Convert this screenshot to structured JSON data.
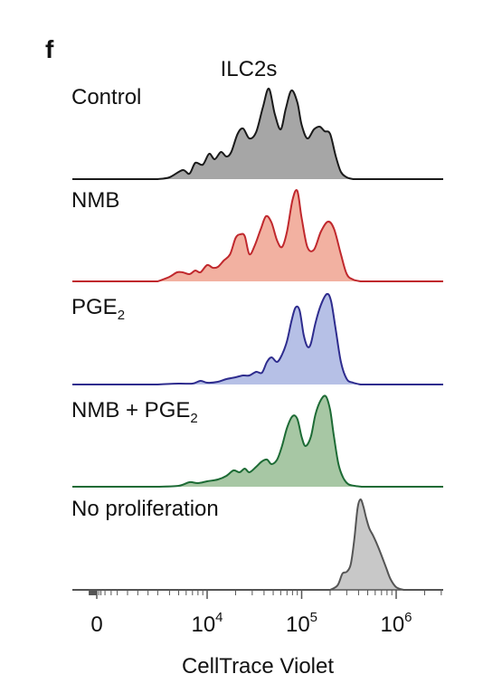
{
  "panel_letter": "f",
  "chart_data": {
    "type": "area",
    "title": "ILC2s",
    "xlabel": "CellTrace Violet",
    "ylabel": "",
    "x_scale": "biexponential",
    "x_ticks": [
      {
        "value": 0,
        "base": "0",
        "exp": ""
      },
      {
        "value": 10000,
        "base": "10",
        "exp": "4"
      },
      {
        "value": 100000,
        "base": "10",
        "exp": "5"
      },
      {
        "value": 1000000,
        "base": "10",
        "exp": "6"
      }
    ],
    "xlim": [
      -300,
      3000000
    ],
    "ylim": [
      0,
      1
    ],
    "series": [
      {
        "name": "Control",
        "name_main": "Control",
        "name_sub": "",
        "stroke": "#1a1a1a",
        "fill": "#a6a6a6",
        "x": [
          3000,
          4000,
          5500,
          6500,
          7500,
          9000,
          10500,
          12000,
          14000,
          16000,
          18000,
          21000,
          24000,
          28000,
          33000,
          39000,
          45000,
          52000,
          60000,
          68000,
          78000,
          90000,
          100000,
          115000,
          135000,
          155000,
          175000,
          200000,
          230000,
          260000,
          300000,
          350000
        ],
        "y": [
          0,
          0.02,
          0.1,
          0.06,
          0.18,
          0.16,
          0.28,
          0.22,
          0.3,
          0.25,
          0.3,
          0.5,
          0.56,
          0.45,
          0.52,
          0.8,
          1.0,
          0.72,
          0.55,
          0.78,
          0.98,
          0.85,
          0.6,
          0.45,
          0.55,
          0.58,
          0.53,
          0.5,
          0.25,
          0.08,
          0.02,
          0
        ]
      },
      {
        "name": "NMB",
        "name_main": "NMB",
        "name_sub": "",
        "stroke": "#c0282d",
        "fill": "#f2b1a1",
        "x": [
          3000,
          4000,
          4800,
          5500,
          6500,
          7500,
          8500,
          10000,
          11500,
          13000,
          15000,
          17500,
          20000,
          22500,
          25000,
          28000,
          32000,
          37000,
          42000,
          48000,
          55000,
          62000,
          70000,
          80000,
          90000,
          100000,
          115000,
          135000,
          160000,
          190000,
          220000,
          260000,
          300000,
          350000,
          420000
        ],
        "y": [
          0,
          0.05,
          0.1,
          0.1,
          0.08,
          0.12,
          0.1,
          0.18,
          0.15,
          0.16,
          0.23,
          0.3,
          0.48,
          0.52,
          0.5,
          0.3,
          0.4,
          0.58,
          0.72,
          0.65,
          0.45,
          0.38,
          0.55,
          0.9,
          1.0,
          0.7,
          0.38,
          0.35,
          0.55,
          0.66,
          0.58,
          0.3,
          0.08,
          0.02,
          0
        ]
      },
      {
        "name": "PGE2",
        "name_main": "PGE",
        "name_sub": "2",
        "stroke": "#2e2c8e",
        "fill": "#b6c0e6",
        "x": [
          3000,
          5000,
          7000,
          8500,
          10000,
          13000,
          16000,
          20000,
          24000,
          28000,
          33000,
          38000,
          43000,
          48000,
          55000,
          62000,
          70000,
          78000,
          86000,
          95000,
          105000,
          115000,
          125000,
          140000,
          160000,
          185000,
          205000,
          230000,
          260000,
          300000,
          350000,
          420000
        ],
        "y": [
          0,
          0.01,
          0.01,
          0.04,
          0.02,
          0.03,
          0.06,
          0.08,
          0.1,
          0.1,
          0.14,
          0.13,
          0.25,
          0.3,
          0.25,
          0.33,
          0.48,
          0.7,
          0.85,
          0.82,
          0.55,
          0.42,
          0.45,
          0.68,
          0.88,
          1.0,
          0.92,
          0.6,
          0.25,
          0.06,
          0.02,
          0
        ]
      },
      {
        "name": "NMB + PGE2",
        "name_main": "NMB + PGE",
        "name_sub": "2",
        "stroke": "#1d6b35",
        "fill": "#a7c7a4",
        "x": [
          3000,
          5000,
          6500,
          8000,
          10000,
          13000,
          16000,
          19000,
          22000,
          25000,
          28000,
          33000,
          38000,
          43000,
          48000,
          55000,
          62000,
          70000,
          80000,
          90000,
          100000,
          110000,
          125000,
          140000,
          160000,
          180000,
          200000,
          220000,
          245000,
          275000,
          310000,
          360000,
          430000
        ],
        "y": [
          0,
          0.01,
          0.05,
          0.04,
          0.06,
          0.08,
          0.12,
          0.18,
          0.16,
          0.2,
          0.16,
          0.22,
          0.28,
          0.3,
          0.25,
          0.3,
          0.45,
          0.65,
          0.78,
          0.75,
          0.55,
          0.45,
          0.55,
          0.8,
          0.96,
          1.0,
          0.85,
          0.55,
          0.25,
          0.1,
          0.03,
          0.01,
          0
        ]
      },
      {
        "name": "No proliferation",
        "name_main": "No proliferation",
        "name_sub": "",
        "stroke": "#555555",
        "fill": "#c8c8c8",
        "x": [
          200000,
          240000,
          270000,
          300000,
          330000,
          360000,
          390000,
          420000,
          450000,
          480000,
          520000,
          570000,
          630000,
          700000,
          780000,
          870000,
          1000000,
          1200000
        ],
        "y": [
          0,
          0.05,
          0.18,
          0.2,
          0.28,
          0.55,
          0.9,
          1.0,
          0.92,
          0.8,
          0.68,
          0.6,
          0.5,
          0.38,
          0.25,
          0.12,
          0.03,
          0
        ]
      }
    ]
  }
}
